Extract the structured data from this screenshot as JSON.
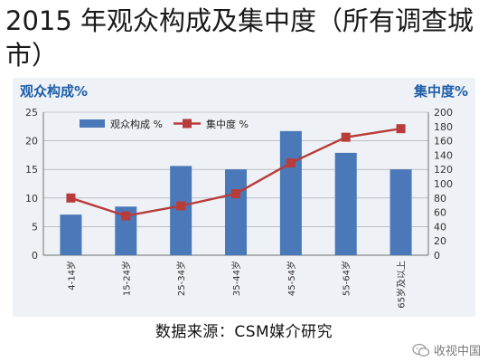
{
  "slide": {
    "title": "2015 年观众构成及集中度（所有调查城市）",
    "source_note": "数据来源：CSM媒介研究",
    "watermark": "收视中国"
  },
  "chart_data": {
    "type": "bar",
    "title": "",
    "left_axis_title": "观众构成%",
    "right_axis_title": "集中度%",
    "categories": [
      "4-14岁",
      "15-24岁",
      "25-34岁",
      "35-44岁",
      "45-54岁",
      "55-64岁",
      "65岁及以上"
    ],
    "series": [
      {
        "name": "观众构成 %",
        "type": "bar",
        "axis": "left",
        "color": "#4a78b8",
        "values": [
          7.1,
          8.5,
          15.6,
          15.0,
          21.7,
          17.9,
          15.0
        ]
      },
      {
        "name": "集中度 %",
        "type": "line",
        "axis": "right",
        "color": "#b83c3a",
        "values": [
          80,
          55,
          69,
          86,
          129,
          165,
          177
        ]
      }
    ],
    "ylim_left": [
      0,
      25
    ],
    "yticks_left": [
      0,
      5,
      10,
      15,
      20,
      25
    ],
    "ylim_right": [
      0,
      200
    ],
    "yticks_right": [
      0,
      20,
      40,
      60,
      80,
      100,
      120,
      140,
      160,
      180,
      200
    ],
    "grid": true,
    "legend_placement": "top-left",
    "colors": {
      "axis_title": "#1f5fa8",
      "panel_bg": "#eef1f6",
      "grid": "#9aa3ad"
    }
  }
}
